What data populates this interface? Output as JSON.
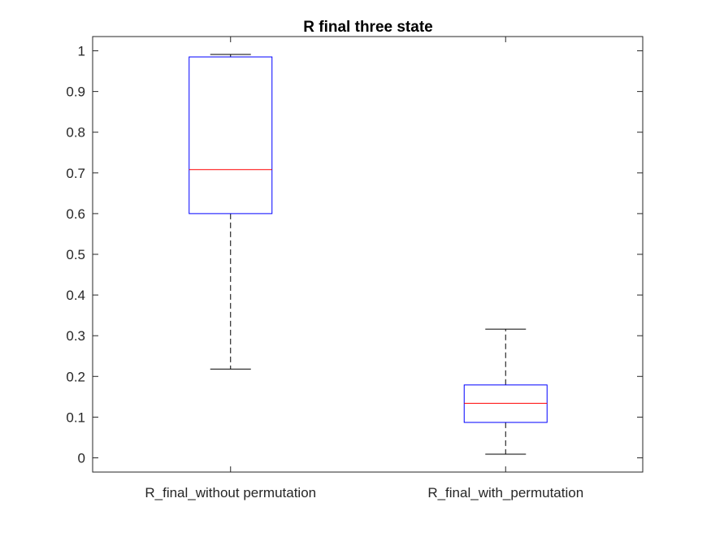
{
  "chart_data": {
    "type": "box",
    "title": "R final three state",
    "xlabel": "",
    "ylabel": "",
    "ylim": [
      -0.035,
      1.035
    ],
    "yticks": [
      0,
      0.1,
      0.2,
      0.3,
      0.4,
      0.5,
      0.6,
      0.7,
      0.8,
      0.9,
      1
    ],
    "ytick_labels": [
      "0",
      "0.1",
      "0.2",
      "0.3",
      "0.4",
      "0.5",
      "0.6",
      "0.7",
      "0.8",
      "0.9",
      "1"
    ],
    "categories": [
      "R_final_without permutation",
      "R_final_with_permutation"
    ],
    "boxes": [
      {
        "whisker_low": 0.218,
        "q1": 0.6,
        "median": 0.708,
        "q3": 0.985,
        "whisker_high": 0.991
      },
      {
        "whisker_low": 0.009,
        "q1": 0.087,
        "median": 0.134,
        "q3": 0.179,
        "whisker_high": 0.316
      }
    ],
    "grid": false,
    "colors": {
      "box": "#0000ff",
      "median": "#ff0000",
      "whisker": "#000000",
      "axes": "#262626"
    }
  }
}
